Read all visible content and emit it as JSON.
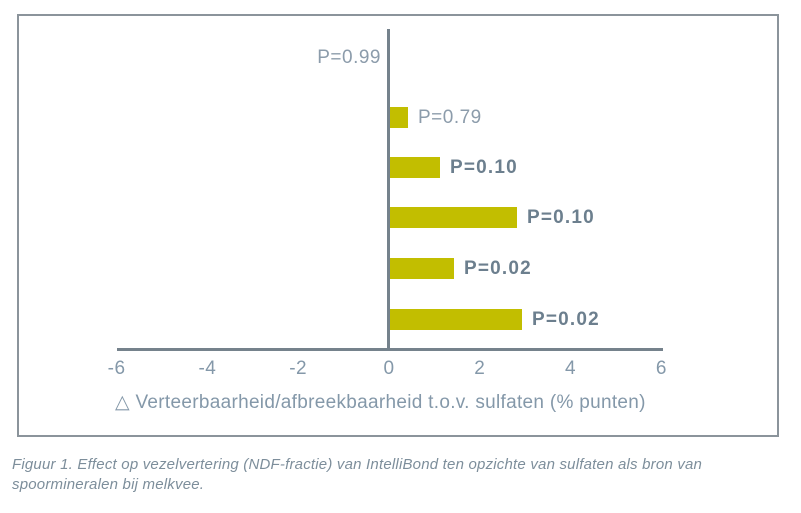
{
  "chart_data": {
    "type": "bar",
    "orientation": "horizontal",
    "series": [
      {
        "label": "P=0.99",
        "value": 0.0,
        "bold": false
      },
      {
        "label": "P=0.79",
        "value": 0.4,
        "bold": false
      },
      {
        "label": "P=0.10",
        "value": 1.1,
        "bold": true
      },
      {
        "label": "P=0.10",
        "value": 2.8,
        "bold": true
      },
      {
        "label": "P=0.02",
        "value": 1.4,
        "bold": true
      },
      {
        "label": "P=0.02",
        "value": 2.9,
        "bold": true
      }
    ],
    "xlabel": "△ Verteerbaarheid/afbreekbaarheid t.o.v. sulfaten (% punten)",
    "x_ticks": [
      -6,
      -4,
      -2,
      0,
      2,
      4,
      6
    ],
    "xlim": [
      -6,
      6
    ],
    "grid": false,
    "legend": "none",
    "bar_color": "#c2be00",
    "axis_color": "#75828c",
    "frame_color": "#8b949b"
  },
  "figure": {
    "caption_line1": "Figuur 1. Effect op vezelvertering (NDF-fractie) van IntelliBond ten opzichte van sulfaten als bron van",
    "caption_line2": "spoormineralen bij melkvee."
  }
}
